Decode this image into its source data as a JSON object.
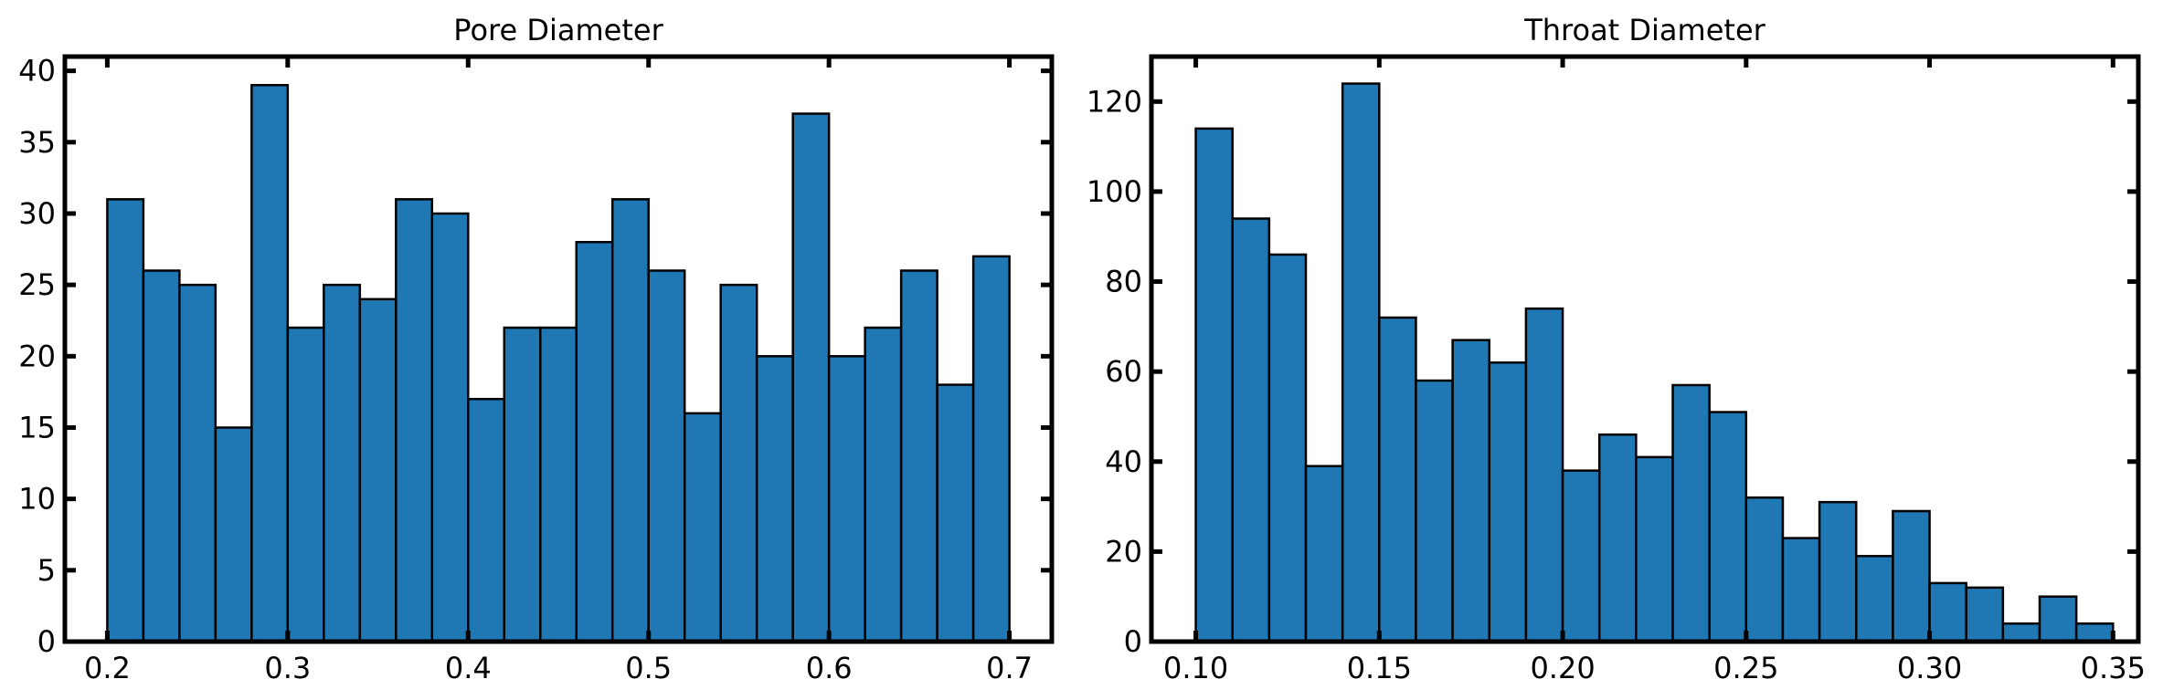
{
  "chart_data": [
    {
      "type": "bar",
      "title": "Pore Diameter",
      "xlabel": "",
      "ylabel": "",
      "xlim": [
        0.1765,
        0.7235
      ],
      "ylim": [
        0,
        41
      ],
      "grid": false,
      "bin_edges": [
        0.2,
        0.22,
        0.24,
        0.26,
        0.28,
        0.3,
        0.32,
        0.34,
        0.36,
        0.38,
        0.4,
        0.42,
        0.44,
        0.46,
        0.48,
        0.5,
        0.52,
        0.54,
        0.56,
        0.58,
        0.6,
        0.62,
        0.64,
        0.66,
        0.68,
        0.7
      ],
      "values": [
        31,
        26,
        25,
        15,
        39,
        22,
        25,
        24,
        31,
        30,
        17,
        22,
        22,
        28,
        31,
        26,
        16,
        25,
        20,
        37,
        20,
        22,
        26,
        18,
        27
      ],
      "x_ticks": [
        0.2,
        0.3,
        0.4,
        0.5,
        0.6,
        0.7
      ],
      "x_tick_labels": [
        "0.2",
        "0.3",
        "0.4",
        "0.5",
        "0.6",
        "0.7"
      ],
      "y_ticks": [
        0,
        5,
        10,
        15,
        20,
        25,
        30,
        35,
        40
      ],
      "y_tick_labels": [
        "0",
        "5",
        "10",
        "15",
        "20",
        "25",
        "30",
        "35",
        "40"
      ]
    },
    {
      "type": "bar",
      "title": "Throat Diameter",
      "xlabel": "",
      "ylabel": "",
      "xlim": [
        0.0879,
        0.3569
      ],
      "ylim": [
        0,
        130
      ],
      "grid": false,
      "bin_edges": [
        0.1,
        0.11,
        0.12,
        0.13,
        0.14,
        0.15,
        0.16,
        0.17,
        0.18,
        0.19,
        0.2,
        0.21,
        0.22,
        0.23,
        0.24,
        0.25,
        0.26,
        0.27,
        0.28,
        0.29,
        0.3,
        0.31,
        0.32,
        0.33,
        0.34,
        0.35
      ],
      "values": [
        114,
        94,
        86,
        39,
        124,
        72,
        58,
        67,
        62,
        74,
        38,
        46,
        41,
        57,
        51,
        32,
        23,
        31,
        19,
        29,
        13,
        12,
        4,
        10,
        4
      ],
      "x_ticks": [
        0.1,
        0.15,
        0.2,
        0.25,
        0.3,
        0.35
      ],
      "x_tick_labels": [
        "0.10",
        "0.15",
        "0.20",
        "0.25",
        "0.30",
        "0.35"
      ],
      "y_ticks": [
        0,
        20,
        40,
        60,
        80,
        100,
        120
      ],
      "y_tick_labels": [
        "0",
        "20",
        "40",
        "60",
        "80",
        "100",
        "120"
      ]
    }
  ]
}
